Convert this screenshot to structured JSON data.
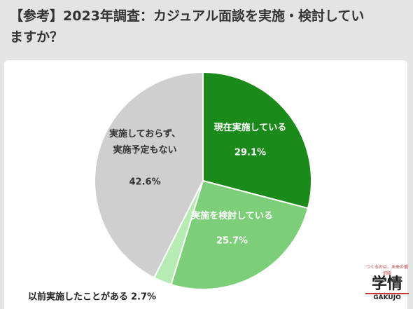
{
  "chart_data": {
    "type": "pie",
    "title": "【参考】2023年調査：カジュアル面談を実施・検討していますか？",
    "categories": [
      "現在実施している",
      "実施を検討している",
      "以前実施したことがある",
      "実施しておらず、\n実施予定もない"
    ],
    "values": [
      29.1,
      25.7,
      2.7,
      42.6
    ],
    "value_labels": [
      "29.1%",
      "25.7%",
      "2.7%",
      "42.6%"
    ],
    "colors": [
      "#1a8a1a",
      "#7ccf78",
      "#b6ebb3",
      "#cfcfcf"
    ]
  },
  "logo": {
    "tagline": "つくるのは、未来の選択肢",
    "name": "学情",
    "latin": "GAKUJO"
  }
}
